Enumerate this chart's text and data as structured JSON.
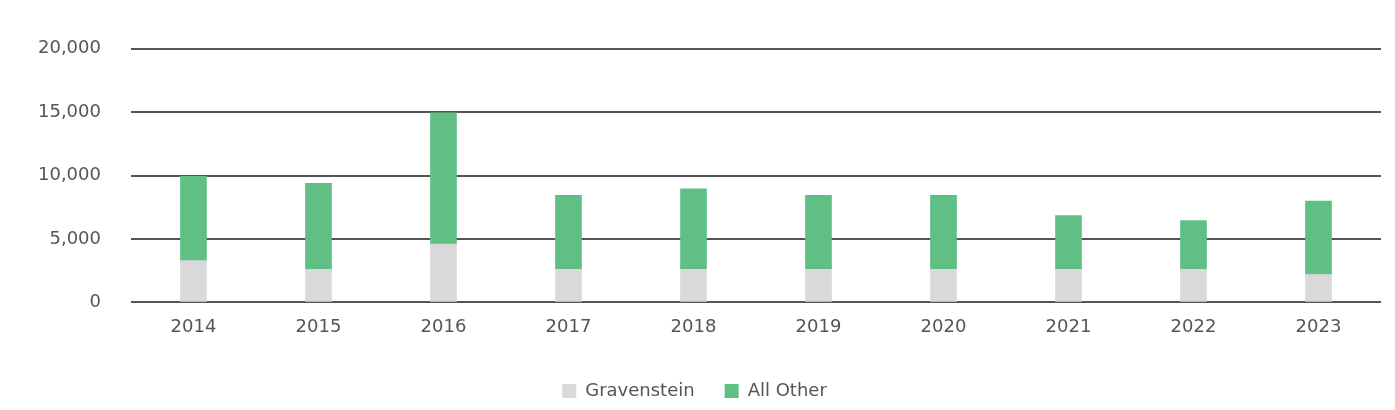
{
  "chart_data": {
    "type": "bar",
    "stacked": true,
    "categories": [
      "2014",
      "2015",
      "2016",
      "2017",
      "2018",
      "2019",
      "2020",
      "2021",
      "2022",
      "2023"
    ],
    "series": [
      {
        "name": "Gravenstein",
        "color": "#d9d9d9",
        "values": [
          3300,
          2600,
          4600,
          2600,
          2600,
          2600,
          2600,
          2600,
          2600,
          2200
        ]
      },
      {
        "name": "All Other",
        "color": "#5fbf84",
        "values": [
          6650,
          6800,
          10350,
          5850,
          6350,
          5850,
          5850,
          4250,
          3850,
          5800
        ]
      }
    ],
    "ylim": [
      0,
      20000
    ],
    "yticks": [
      0,
      {
        "value": 5000,
        "label": "5,000"
      },
      {
        "value": 10000,
        "label": "10,000"
      },
      {
        "value": 15000,
        "label": "15,000"
      },
      {
        "value": 20000,
        "label": "20,000"
      }
    ],
    "grid": "y",
    "legend": "bottom"
  }
}
